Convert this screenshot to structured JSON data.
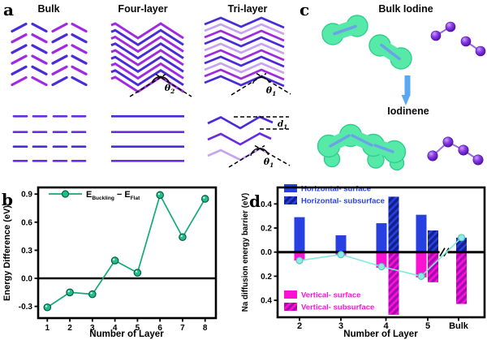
{
  "figure": {
    "background": "#ffffff"
  },
  "panels": {
    "a": {
      "label": "a",
      "titles": [
        "Bulk",
        "Four-layer",
        "Tri-layer"
      ],
      "annotations": {
        "theta2": {
          "sym": "θ",
          "sub": "2"
        },
        "theta1_top": {
          "sym": "θ",
          "sub": "1"
        },
        "d1": {
          "sym": "d",
          "sub": "1"
        },
        "theta1_bottom": {
          "sym": "θ",
          "sub": "1"
        }
      },
      "palette": {
        "blue": "#4a2bd8",
        "magenta": "#a02ae0",
        "violet": "#6a2ce0",
        "lavender": "#c9a4ee"
      }
    },
    "b": {
      "label": "b"
    },
    "c": {
      "label": "c",
      "top_title": "Bulk Iodine",
      "bottom_title": "Iodinene",
      "palette": {
        "blob": "#57e9a8",
        "blob_edge": "#2fcf8d",
        "bond": "#6aa3e8",
        "atom_hi": "#c9a0f2",
        "atom": "#8a3ae8",
        "atom_dark": "#4c0f9e",
        "stick": "#9a6ad8",
        "arrow": "#5aa8f5"
      }
    },
    "d": {
      "label": "d"
    }
  },
  "chart_data": [
    {
      "id": "b",
      "type": "line",
      "title": "",
      "xlabel": "Number of Layer",
      "ylabel": "Energy Difference (eV)",
      "x": [
        1,
        2,
        3,
        4,
        5,
        6,
        7,
        8
      ],
      "series": [
        {
          "name": "E_Buckling − E_Flat",
          "color": "#12a97b",
          "marker_fill": "#23bd8d",
          "marker_edge": "#075c41",
          "values": [
            -0.31,
            -0.15,
            -0.17,
            0.19,
            0.06,
            0.89,
            0.44,
            0.85
          ]
        }
      ],
      "legend_parts": {
        "term1": "E",
        "sub1": "Buckling",
        "op": "−",
        "term2": "E",
        "sub2": "Flat"
      },
      "ytick_labels": [
        "-0.3",
        "0.0",
        "0.3",
        "0.6",
        "0.9"
      ],
      "ytick_values": [
        -0.3,
        0.0,
        0.3,
        0.6,
        0.9
      ],
      "ylim": [
        -0.42,
        0.97
      ],
      "zero_line": true,
      "grid": false,
      "legend_position": "top-left"
    },
    {
      "id": "d",
      "type": "bar",
      "title": "",
      "xlabel": "Number of Layer",
      "ylabel": "Na diffusion energy barrier (eV)",
      "categories": [
        "2",
        "3",
        "4",
        "5",
        "Bulk"
      ],
      "series": [
        {
          "name": "Horizontal- surface",
          "orientation": "up",
          "fill": "solid",
          "color": "#2840e0",
          "values": [
            0.29,
            0.14,
            0.24,
            0.31,
            null
          ]
        },
        {
          "name": "Horizontal- subsurface",
          "orientation": "up",
          "fill": "hatched",
          "color": "#2840e0",
          "hatch_color": "#131f8a",
          "values": [
            null,
            null,
            0.46,
            0.18,
            0.12
          ]
        },
        {
          "name": "Vertical- surface",
          "orientation": "down",
          "fill": "solid",
          "color": "#fb12d2",
          "values": [
            0.07,
            0.03,
            0.13,
            0.21,
            null
          ]
        },
        {
          "name": "Vertical- subsurface",
          "orientation": "down",
          "fill": "hatched",
          "color": "#fb12d2",
          "hatch_color": "#a50bb4",
          "values": [
            null,
            null,
            0.52,
            0.25,
            0.43
          ]
        }
      ],
      "trend_line": {
        "color": "#7fe9dc",
        "marker_fill": "#8feadf",
        "marker_edge": "#4fc4b6",
        "values": [
          -0.07,
          -0.02,
          -0.12,
          -0.2,
          0.12
        ]
      },
      "ytick_labels": [
        "0.4",
        "0.2",
        "0.0",
        "0.2",
        "0.4"
      ],
      "ytick_values": [
        0.4,
        0.2,
        0.0,
        -0.2,
        -0.4
      ],
      "ylim": [
        -0.55,
        0.54
      ],
      "zero_line": true,
      "grid": false,
      "axis_break_between": [
        "5",
        "Bulk"
      ],
      "legend_position": "inside-left"
    }
  ]
}
